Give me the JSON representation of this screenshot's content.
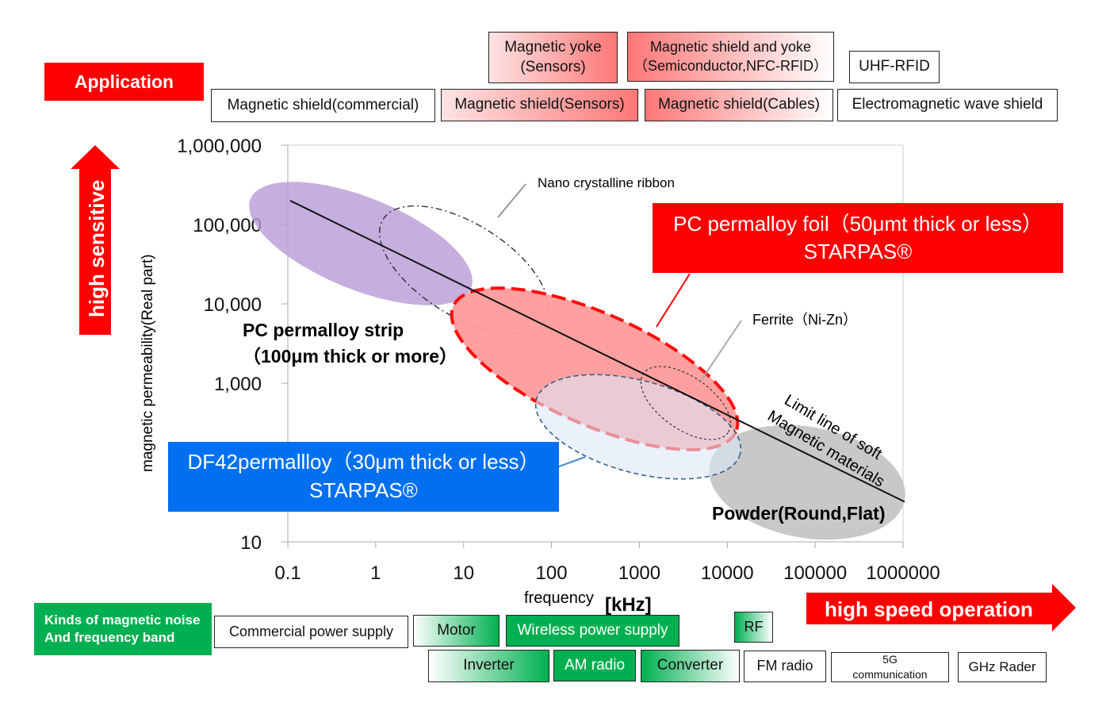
{
  "application_label": "Application",
  "applications_row1": [
    "Magnetic yoke\n(Sensors)",
    "Magnetic shield and yoke\n（Semiconductor,NFC-RFID）",
    "UHF-RFID"
  ],
  "applications_row2": [
    "Magnetic shield(commercial)",
    "Magnetic shield(Sensors)",
    "Magnetic shield(Cables)",
    "Electromagnetic wave shield"
  ],
  "high_sensitive": "high sensitive",
  "high_speed": "high speed operation",
  "noise_label": "Kinds of magnetic noise\nAnd frequency band",
  "noise_row1": [
    "Commercial power supply",
    "Motor",
    "Wireless power supply",
    "RF"
  ],
  "noise_row2": [
    "Inverter",
    "AM radio",
    "Converter",
    "FM radio",
    "5G\ncommunication",
    "GHz Rader"
  ],
  "colors": {
    "red": "#ff0000",
    "blue": "#0070f0",
    "green": "#00b050",
    "purple": "#b89ad6",
    "gray": "#c8c8c8"
  },
  "chart_data": {
    "type": "scatter",
    "xlabel": "frequency",
    "xunit": "[kHz]",
    "ylabel": "magnetic permeability(Real part)",
    "xscale": "log",
    "yscale": "log",
    "xlim": [
      0.1,
      1000000
    ],
    "ylim": [
      10,
      1000000
    ],
    "xticks": [
      "0.1",
      "1",
      "10",
      "100",
      "1000",
      "10000",
      "100000",
      "1000000"
    ],
    "yticks": [
      "1,000,000",
      "100,000",
      "10,000",
      "1,000",
      "10"
    ],
    "limit_line": {
      "label": "Limit line of soft\nMagnetic materials",
      "points": [
        [
          0.1,
          200000
        ],
        [
          1000000,
          32
        ]
      ]
    },
    "regions": {
      "nano": "Nano crystalline ribbon",
      "pc_foil": "PC permalloy foil（50μmt thick or less）\nSTARPAS®",
      "pc_strip": "PC permalloy strip\n（100μm thick or more）",
      "ferrite": "Ferrite（Ni-Zn）",
      "df42": "DF42permallloy（30μm thick or less）\nSTARPAS®",
      "powder": "Powder(Round,Flat)"
    }
  }
}
